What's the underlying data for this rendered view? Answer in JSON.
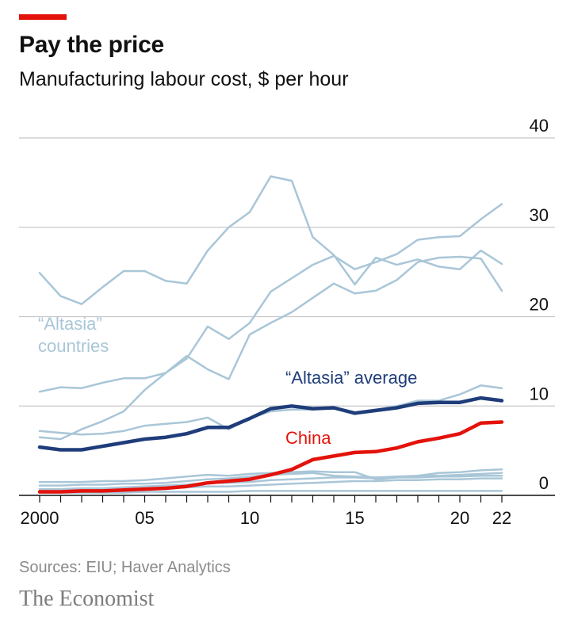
{
  "header": {
    "title": "Pay the price",
    "subtitle": "Manufacturing labour cost, $ per hour"
  },
  "footer": {
    "source": "Sources: EIU; Haver Analytics",
    "brand": "The Economist"
  },
  "colors": {
    "accent": "#e3120b",
    "altasia_country": "#a9c6d8",
    "altasia_average": "#1f3d7a",
    "china": "#e3120b",
    "grid": "#c8c8c8",
    "axis": "#111111"
  },
  "chart_data": {
    "type": "line",
    "title": "Pay the price",
    "subtitle": "Manufacturing labour cost, $ per hour",
    "xlabel": "",
    "ylabel": "",
    "xlim": [
      2000,
      2022
    ],
    "ylim": [
      0,
      40
    ],
    "y_axis_position": "right",
    "grid": true,
    "x_ticks": [
      2000,
      2005,
      2010,
      2015,
      2020,
      2022
    ],
    "x_tick_labels": [
      "2000",
      "05",
      "10",
      "15",
      "20",
      "22"
    ],
    "y_ticks": [
      0,
      10,
      20,
      30,
      40
    ],
    "y_tick_labels": [
      "0",
      "10",
      "20",
      "30",
      "40"
    ],
    "x": [
      2000,
      2001,
      2002,
      2003,
      2004,
      2005,
      2006,
      2007,
      2008,
      2009,
      2010,
      2011,
      2012,
      2013,
      2014,
      2015,
      2016,
      2017,
      2018,
      2019,
      2020,
      2021,
      2022
    ],
    "annotations": [
      {
        "text": "“Altasia”\ncountries",
        "series_ref": "altasia-countries"
      },
      {
        "text": "“Altasia” average",
        "series_ref": "altasia-average"
      },
      {
        "text": "China",
        "series_ref": "china"
      }
    ],
    "series": [
      {
        "group": "altasia-countries",
        "color": "#a9c6d8",
        "width": 2.5,
        "values": [
          24.9,
          22.3,
          21.4,
          23.3,
          25.1,
          25.1,
          24.0,
          23.7,
          27.4,
          30.0,
          31.7,
          35.7,
          35.2,
          28.9,
          26.9,
          23.6,
          26.6,
          25.8,
          26.4,
          25.6,
          25.3,
          27.4,
          25.9
        ]
      },
      {
        "group": "altasia-countries",
        "color": "#a9c6d8",
        "width": 2.5,
        "values": [
          11.6,
          12.1,
          12.0,
          12.6,
          13.1,
          13.1,
          13.7,
          15.6,
          14.1,
          13.0,
          18.0,
          19.3,
          20.5,
          22.1,
          23.7,
          22.6,
          22.9,
          24.1,
          26.1,
          26.6,
          26.7,
          26.5,
          22.9
        ]
      },
      {
        "group": "altasia-countries",
        "color": "#a9c6d8",
        "width": 2.5,
        "values": [
          6.5,
          6.3,
          7.4,
          8.3,
          9.4,
          11.8,
          13.7,
          15.3,
          18.9,
          17.5,
          19.3,
          22.8,
          24.3,
          25.8,
          26.8,
          25.3,
          26.1,
          27.0,
          28.6,
          28.9,
          29.0,
          30.9,
          32.6
        ]
      },
      {
        "group": "altasia-countries",
        "color": "#a9c6d8",
        "width": 2.5,
        "values": [
          7.2,
          7.0,
          6.8,
          6.9,
          7.2,
          7.8,
          8.0,
          8.2,
          8.7,
          7.4,
          8.6,
          9.4,
          9.6,
          9.6,
          9.8,
          9.3,
          9.6,
          10.0,
          10.6,
          10.6,
          11.3,
          12.3,
          12.0
        ]
      },
      {
        "group": "altasia-countries",
        "color": "#a9c6d8",
        "width": 2.5,
        "values": [
          1.5,
          1.5,
          1.5,
          1.6,
          1.6,
          1.7,
          1.9,
          2.1,
          2.3,
          2.2,
          2.4,
          2.5,
          2.6,
          2.7,
          2.6,
          2.6,
          1.8,
          2.0,
          2.2,
          2.5,
          2.6,
          2.8,
          2.9
        ]
      },
      {
        "group": "altasia-countries",
        "color": "#a9c6d8",
        "width": 2.5,
        "values": [
          1.1,
          1.1,
          1.2,
          1.2,
          1.3,
          1.3,
          1.4,
          1.6,
          1.8,
          1.9,
          2.1,
          2.3,
          2.4,
          2.5,
          2.2,
          2.1,
          2.0,
          2.1,
          2.2,
          2.2,
          2.3,
          2.4,
          2.5
        ]
      },
      {
        "group": "altasia-countries",
        "color": "#a9c6d8",
        "width": 2.5,
        "values": [
          0.7,
          0.7,
          0.8,
          0.8,
          0.9,
          1.0,
          1.1,
          1.2,
          1.4,
          1.4,
          1.5,
          1.7,
          1.8,
          1.9,
          2.0,
          2.0,
          1.9,
          2.0,
          2.0,
          2.1,
          2.1,
          2.2,
          2.2
        ]
      },
      {
        "group": "altasia-countries",
        "color": "#a9c6d8",
        "width": 2.5,
        "values": [
          0.5,
          0.5,
          0.5,
          0.6,
          0.6,
          0.7,
          0.8,
          0.9,
          1.0,
          1.0,
          1.1,
          1.2,
          1.3,
          1.4,
          1.5,
          1.6,
          1.6,
          1.7,
          1.7,
          1.8,
          1.8,
          1.9,
          1.9
        ]
      },
      {
        "group": "altasia-countries",
        "color": "#a9c6d8",
        "width": 2.5,
        "values": [
          0.3,
          0.3,
          0.3,
          0.3,
          0.3,
          0.4,
          0.4,
          0.4,
          0.4,
          0.4,
          0.5,
          0.5,
          0.5,
          0.5,
          0.5,
          0.5,
          0.5,
          0.5,
          0.5,
          0.5,
          0.5,
          0.5,
          0.5
        ]
      },
      {
        "group": "altasia-average",
        "color": "#1f3d7a",
        "width": 4.5,
        "values": [
          5.4,
          5.1,
          5.1,
          5.5,
          5.9,
          6.3,
          6.5,
          6.9,
          7.6,
          7.6,
          8.6,
          9.7,
          10.0,
          9.7,
          9.8,
          9.2,
          9.5,
          9.8,
          10.3,
          10.4,
          10.4,
          10.9,
          10.6
        ]
      },
      {
        "group": "china",
        "color": "#e3120b",
        "width": 4.5,
        "values": [
          0.4,
          0.4,
          0.5,
          0.5,
          0.6,
          0.7,
          0.8,
          1.0,
          1.4,
          1.6,
          1.8,
          2.3,
          2.9,
          4.0,
          4.4,
          4.8,
          4.9,
          5.3,
          6.0,
          6.4,
          6.9,
          8.1,
          8.2
        ]
      }
    ]
  }
}
